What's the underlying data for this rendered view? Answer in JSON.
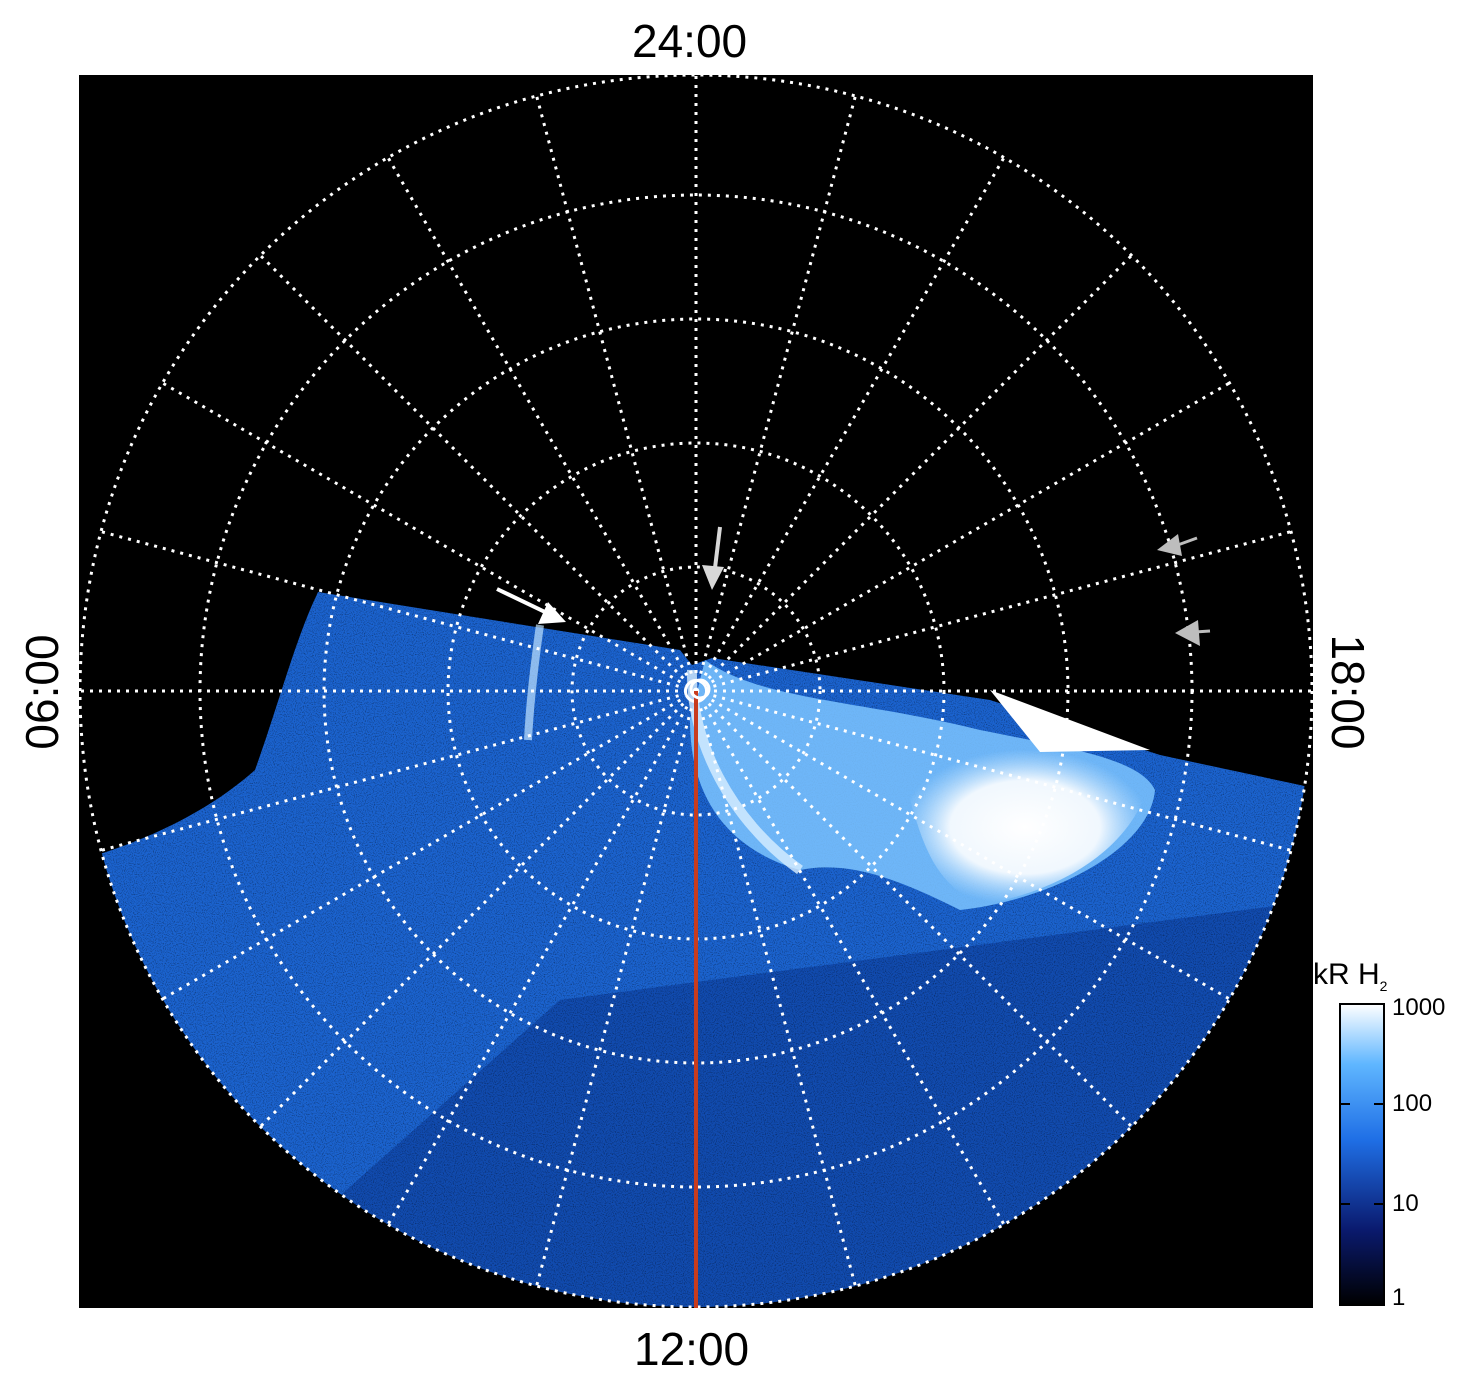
{
  "local_time_labels": {
    "top": "24:00",
    "bottom": "12:00",
    "left": "06:00",
    "right": "18:00"
  },
  "colorbar": {
    "unit": "kR H",
    "unit_subscript": "2",
    "ticks": [
      "1000",
      "100",
      "10",
      "1"
    ],
    "scale": "log",
    "colors": [
      "#000000",
      "#0a1a6e",
      "#1f6fe6",
      "#5fb6ff",
      "#ffffff"
    ]
  },
  "colors": {
    "background": "#000000",
    "grid": "#ffffff",
    "meridian_line": "#c83c1e",
    "arrow_white": "#ffffff",
    "arrow_gray": "#bdbdbd"
  },
  "markers": [
    {
      "type": "arrow",
      "color": "white"
    },
    {
      "type": "arrow",
      "color": "light-gray"
    },
    {
      "type": "arrow",
      "color": "gray"
    },
    {
      "type": "arrow",
      "color": "gray"
    }
  ]
}
